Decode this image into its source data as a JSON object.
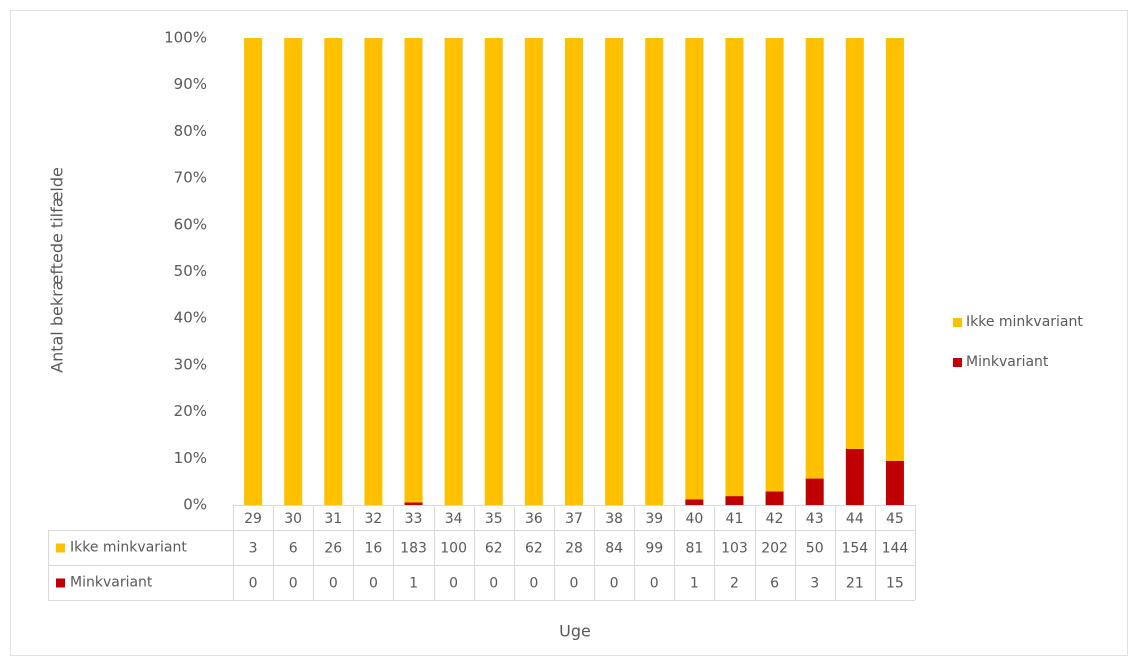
{
  "chart_data": {
    "type": "bar",
    "stack": "percent",
    "y_label": "Antal bekræftede tilfælde",
    "x_label": "Uge",
    "categories": [
      "29",
      "30",
      "31",
      "32",
      "33",
      "34",
      "35",
      "36",
      "37",
      "38",
      "39",
      "40",
      "41",
      "42",
      "43",
      "44",
      "45"
    ],
    "series": [
      {
        "name": "Ikke minkvariant",
        "color": "#ffc000",
        "values": [
          3,
          6,
          26,
          16,
          183,
          100,
          62,
          62,
          28,
          84,
          99,
          81,
          103,
          202,
          50,
          154,
          144
        ]
      },
      {
        "name": "Minkvariant",
        "color": "#c00000",
        "values": [
          0,
          0,
          0,
          0,
          1,
          0,
          0,
          0,
          0,
          0,
          0,
          1,
          2,
          6,
          3,
          21,
          15
        ]
      }
    ],
    "ylim": [
      0,
      100
    ],
    "yticks": [
      {
        "value": 0,
        "label": "0%"
      },
      {
        "value": 10,
        "label": "10%"
      },
      {
        "value": 20,
        "label": "20%"
      },
      {
        "value": 30,
        "label": "30%"
      },
      {
        "value": 40,
        "label": "40%"
      },
      {
        "value": 50,
        "label": "50%"
      },
      {
        "value": 60,
        "label": "60%"
      },
      {
        "value": 70,
        "label": "70%"
      },
      {
        "value": 80,
        "label": "80%"
      },
      {
        "value": 90,
        "label": "90%"
      },
      {
        "value": 100,
        "label": "100%"
      }
    ],
    "legend": "right",
    "data_table": true
  }
}
